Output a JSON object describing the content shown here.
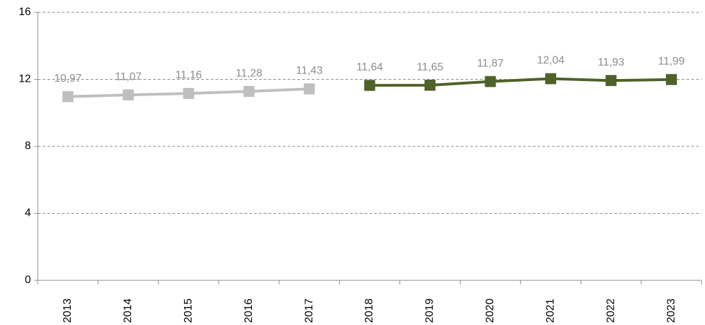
{
  "chart_data": {
    "type": "line",
    "categories": [
      "2013",
      "2014",
      "2015",
      "2016",
      "2017",
      "2018",
      "2019",
      "2020",
      "2021",
      "2022",
      "2023"
    ],
    "series": [
      {
        "color": "#bfbfbf",
        "values": [
          10.97,
          11.07,
          11.16,
          11.28,
          11.43,
          null,
          null,
          null,
          null,
          null,
          null
        ],
        "value_labels": [
          "10,97",
          "11,07",
          "11,16",
          "11,28",
          "11,43",
          null,
          null,
          null,
          null,
          null,
          null
        ]
      },
      {
        "color": "#4f6228",
        "values": [
          null,
          null,
          null,
          null,
          null,
          11.64,
          11.65,
          11.87,
          12.04,
          11.93,
          11.99
        ],
        "value_labels": [
          null,
          null,
          null,
          null,
          null,
          "11,64",
          "11,65",
          "11,87",
          "12,04",
          "11,93",
          "11,99"
        ]
      }
    ],
    "ylim": [
      0,
      16
    ],
    "yticks": [
      0,
      4,
      8,
      12,
      16
    ],
    "grid": true
  }
}
